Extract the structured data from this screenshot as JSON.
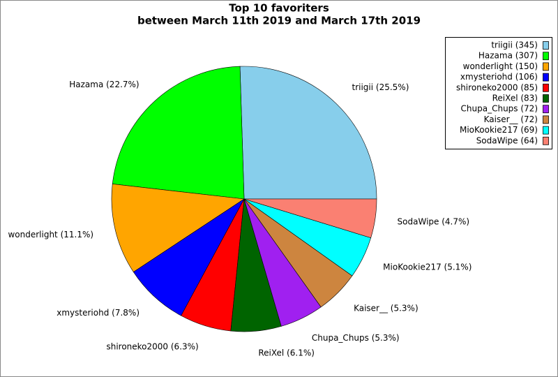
{
  "chart_data": {
    "type": "pie",
    "title": "Top 10 favoriters",
    "subtitle": "between March 11th 2019 and March 17th 2019",
    "categories": [
      "triigii",
      "Hazama",
      "wonderlight",
      "xmysteriohd",
      "shironeko2000",
      "ReiXel",
      "Chupa_Chups",
      "Kaiser__",
      "MioKookie217",
      "SodaWipe"
    ],
    "values": [
      345,
      307,
      150,
      106,
      85,
      83,
      72,
      72,
      69,
      64
    ],
    "legend_labels": [
      "triigii (345)",
      "Hazama (307)",
      "wonderlight (150)",
      "xmysteriohd (106)",
      "shironeko2000 (85)",
      "ReiXel (83)",
      "Chupa_Chups (72)",
      "Kaiser__ (72)",
      "MioKookie217 (69)",
      "SodaWipe (64)"
    ],
    "slice_labels": [
      "triigii (25.5%)",
      "Hazama (22.7%)",
      "wonderlight (11.1%)",
      "xmysteriohd (7.8%)",
      "shironeko2000 (6.3%)",
      "ReiXel (6.1%)",
      "Chupa_Chups (5.3%)",
      "Kaiser__ (5.3%)",
      "MioKookie217 (5.1%)",
      "SodaWipe (4.7%)"
    ],
    "colors": [
      "#87ceeb",
      "#00ff00",
      "#ffa500",
      "#0000ff",
      "#ff0000",
      "#006400",
      "#a020f0",
      "#cd853f",
      "#00ffff",
      "#fa8072"
    ],
    "legend": "top-right"
  }
}
